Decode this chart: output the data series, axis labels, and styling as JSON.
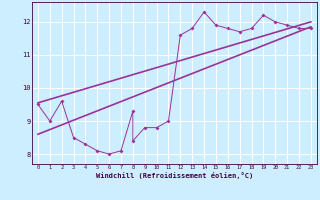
{
  "xlabel": "Windchill (Refroidissement éolien,°C)",
  "bg_color": "#cceeff",
  "line_color": "#993399",
  "grid_color": "#ffffff",
  "scatter_x": [
    0,
    1,
    2,
    3,
    4,
    5,
    6,
    7,
    8,
    8,
    9,
    10,
    11,
    12,
    13,
    14,
    15,
    16,
    17,
    18,
    19,
    20,
    21,
    22,
    23
  ],
  "scatter_y": [
    9.5,
    9.0,
    9.6,
    8.5,
    8.3,
    8.1,
    8.0,
    8.1,
    9.3,
    8.4,
    8.8,
    8.8,
    9.0,
    11.6,
    11.8,
    12.3,
    11.9,
    11.8,
    11.7,
    11.8,
    12.2,
    12.0,
    11.9,
    11.8,
    11.8
  ],
  "trend1_x": [
    0,
    23
  ],
  "trend1_y": [
    9.55,
    12.0
  ],
  "trend2_x": [
    0,
    23
  ],
  "trend2_y": [
    8.6,
    11.85
  ],
  "xlim": [
    -0.5,
    23.5
  ],
  "ylim": [
    7.7,
    12.6
  ],
  "xticks": [
    0,
    1,
    2,
    3,
    4,
    5,
    6,
    7,
    8,
    9,
    10,
    11,
    12,
    13,
    14,
    15,
    16,
    17,
    18,
    19,
    20,
    21,
    22,
    23
  ],
  "yticks": [
    8,
    9,
    10,
    11,
    12
  ]
}
